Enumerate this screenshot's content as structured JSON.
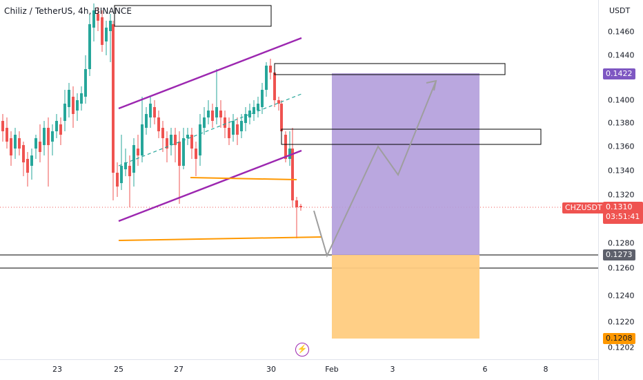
{
  "header": {
    "title": "Chiliz / TetherUS, 4h, BINANCE"
  },
  "price_axis": {
    "unit": "USDT",
    "ticks": [
      "0.1460",
      "0.1440",
      "0.1400",
      "0.1380",
      "0.1360",
      "0.1340",
      "0.1320",
      "0.1280",
      "0.1260",
      "0.1240",
      "0.1220",
      "0.1202"
    ]
  },
  "time_axis": {
    "ticks": [
      "23",
      "25",
      "27",
      "30",
      "Feb",
      "3",
      "6",
      "8"
    ]
  },
  "labels": {
    "target_price": "0.1422",
    "symbol": "CHZUSDT",
    "current_price": "0.1310",
    "countdown": "03:51:41",
    "entry_price": "0.1273",
    "stop_price": "0.1208"
  },
  "colors": {
    "up_candle": "#26a69a",
    "down_candle": "#ef5350",
    "channel": "#9c27b0",
    "support": "#ff9800",
    "profit_zone": "#b39ddb",
    "loss_zone": "#ffcc80",
    "projection": "#9e9e9e"
  },
  "icons": {
    "replay": "lightning-bolt-icon"
  }
}
